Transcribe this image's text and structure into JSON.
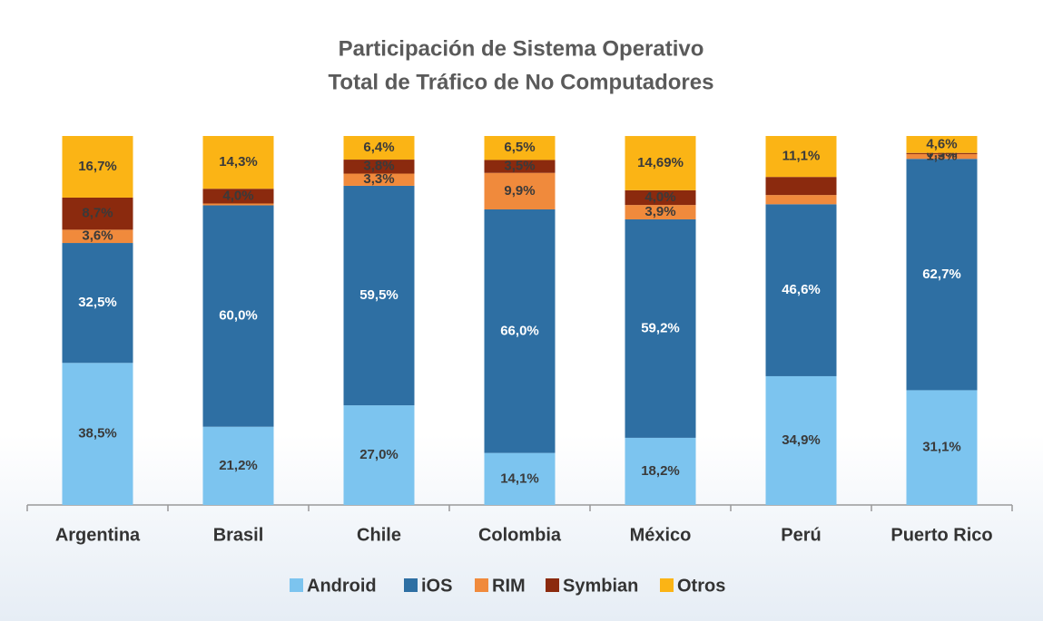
{
  "chart_data": {
    "type": "stacked_bar",
    "title": "Participación de Sistema Operativo",
    "subtitle": "Total de Tráfico de No Computadores",
    "categories": [
      "Argentina",
      "Brasil",
      "Chile",
      "Colombia",
      "México",
      "Perú",
      "Puerto Rico"
    ],
    "ylim": [
      0,
      100
    ],
    "legend": "bottom",
    "series": [
      {
        "name": "Android",
        "color": "#7cc4ef",
        "label_color": "#3a3a3a",
        "values": [
          38.5,
          21.2,
          27.0,
          14.1,
          18.2,
          34.9,
          31.1
        ],
        "value_labels": [
          "38,5%",
          "21,2%",
          "27,0%",
          "14,1%",
          "18,2%",
          "34,9%",
          "31,1%"
        ]
      },
      {
        "name": "iOS",
        "color": "#2e6fa3",
        "label_color": "#ffffff",
        "values": [
          32.5,
          60.0,
          59.5,
          66.0,
          59.2,
          46.6,
          62.7
        ],
        "value_labels": [
          "32,5%",
          "60,0%",
          "59,5%",
          "66,0%",
          "59,2%",
          "46,6%",
          "62,7%"
        ]
      },
      {
        "name": "RIM",
        "color": "#f08a3c",
        "label_color": "#3a3a3a",
        "values": [
          3.6,
          0.5,
          3.3,
          9.9,
          3.9,
          2.5,
          1.3
        ],
        "value_labels": [
          "3,6%",
          null,
          "3,3%",
          "9,9%",
          "3,9%",
          null,
          "1,3%"
        ]
      },
      {
        "name": "Symbian",
        "color": "#8b2a0e",
        "label_color": "#3a3a3a",
        "values": [
          8.7,
          4.0,
          3.8,
          3.5,
          4.0,
          4.9,
          0.3
        ],
        "value_labels": [
          "8,7%",
          "4,0%",
          "3,8%",
          "3,5%",
          "4,0%",
          null,
          "0,3%"
        ]
      },
      {
        "name": "Otros",
        "color": "#fbb415",
        "label_color": "#3a3a3a",
        "values": [
          16.7,
          14.3,
          6.4,
          6.5,
          14.69,
          11.1,
          4.6
        ],
        "value_labels": [
          "16,7%",
          "14,3%",
          "6,4%",
          "6,5%",
          "14,69%",
          "11,1%",
          "4,6%"
        ]
      }
    ]
  }
}
